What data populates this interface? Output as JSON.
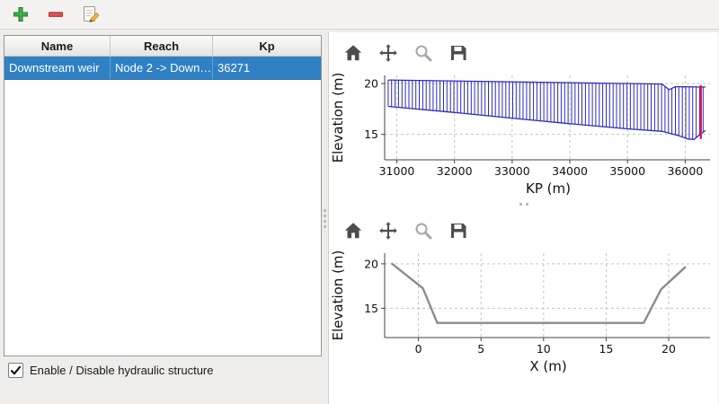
{
  "main_toolbar": {
    "buttons": [
      {
        "label": "add",
        "icon": "plus-icon",
        "color": "#3fae49"
      },
      {
        "label": "remove",
        "icon": "minus-icon",
        "color": "#d95252"
      },
      {
        "label": "edit",
        "icon": "edit-icon",
        "color": "#f2b73e"
      }
    ]
  },
  "structures_table": {
    "columns": [
      "Name",
      "Reach",
      "Kp"
    ],
    "rows": [
      {
        "name": "Downstream weir",
        "reach": "Node 2 -> Down…",
        "kp": "36271",
        "selected": true
      }
    ],
    "selection_color": "#2f81c4"
  },
  "enable_checkbox": {
    "label": "Enable / Disable hydraulic structure",
    "checked": true
  },
  "plot_toolbar": {
    "icons": [
      "home-icon",
      "pan-icon",
      "zoom-icon",
      "save-icon"
    ]
  },
  "chart_data": [
    {
      "type": "area",
      "id": "longitudinal-profile",
      "title": "",
      "xlabel": "KP (m)",
      "ylabel": "Elevation (m)",
      "xlim": [
        30790,
        36430
      ],
      "ylim": [
        12.5,
        20.8
      ],
      "xticks": [
        31000,
        32000,
        33000,
        34000,
        35000,
        36000
      ],
      "yticks": [
        15,
        20
      ],
      "grid": true,
      "legend": false,
      "hatch_step": 60,
      "hatch_color": "#2b2bc0",
      "series": {
        "top": [
          [
            30850,
            20.35
          ],
          [
            35600,
            19.95
          ],
          [
            35720,
            19.4
          ],
          [
            35830,
            19.7
          ],
          [
            36350,
            19.65
          ]
        ],
        "bottom": [
          [
            30850,
            17.75
          ],
          [
            32000,
            17.15
          ],
          [
            33000,
            16.6
          ],
          [
            34000,
            16.05
          ],
          [
            35000,
            15.55
          ],
          [
            35600,
            15.3
          ],
          [
            35900,
            14.85
          ],
          [
            36050,
            14.55
          ],
          [
            36150,
            14.5
          ],
          [
            36350,
            15.4
          ]
        ]
      },
      "marker": {
        "kp": 36271,
        "elev_top": 19.85,
        "elev_bottom": 14.55,
        "color": "#e0154a"
      }
    },
    {
      "type": "line",
      "id": "cross-section",
      "title": "",
      "xlabel": "X (m)",
      "ylabel": "Elevation (m)",
      "xlim": [
        -2.7,
        23.3
      ],
      "ylim": [
        11.7,
        21.2
      ],
      "xticks": [
        0,
        5,
        10,
        15,
        20
      ],
      "yticks": [
        15,
        20
      ],
      "grid": true,
      "legend": false,
      "line_color": "#8c8c8c",
      "points": [
        [
          -2.1,
          20.0
        ],
        [
          0.35,
          17.25
        ],
        [
          1.5,
          13.35
        ],
        [
          18.0,
          13.35
        ],
        [
          19.4,
          17.15
        ],
        [
          21.3,
          19.6
        ]
      ]
    }
  ]
}
